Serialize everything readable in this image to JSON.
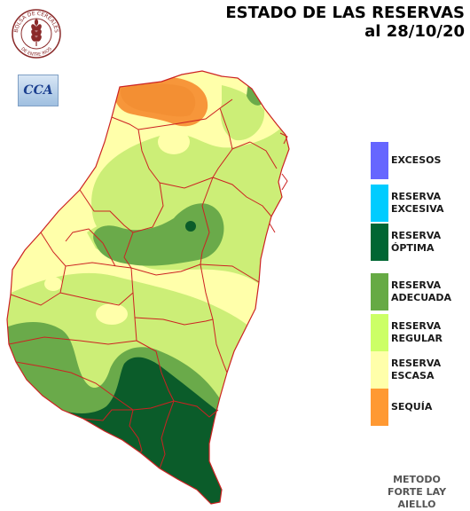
{
  "title": {
    "line1": "ESTADO DE LAS RESERVAS",
    "line2": "al 28/10/20"
  },
  "logos": {
    "bolsa_top": "BOLSA DE CEREALES",
    "bolsa_bottom": "DE ENTRE RIOS",
    "cca": "CCA"
  },
  "legend": [
    {
      "label_line1": "EXCESOS",
      "label_line2": "",
      "color": "#6666ff"
    },
    {
      "label_line1": "RESERVA",
      "label_line2": "EXCESIVA",
      "color": "#00ccff"
    },
    {
      "label_line1": "RESERVA",
      "label_line2": "ÓPTIMA",
      "color": "#006633"
    },
    {
      "label_line1": "RESERVA",
      "label_line2": "ADECUADA",
      "color": "#66aa44"
    },
    {
      "label_line1": "RESERVA",
      "label_line2": "REGULAR",
      "color": "#ccff66"
    },
    {
      "label_line1": "RESERVA",
      "label_line2": "ESCASA",
      "color": "#ffffaa"
    },
    {
      "label_line1": "SEQUÍA",
      "label_line2": "",
      "color": "#ff9933"
    }
  ],
  "method": {
    "line1": "METODO",
    "line2": "FORTE LAY",
    "line3": "AIELLO"
  },
  "colors": {
    "border": "#cc2222",
    "escasa": "#ffffaa",
    "regular": "#ccee77",
    "adecuada": "#6aaa4a",
    "optima": "#0b5c2a",
    "sequia": "#f7963a"
  }
}
